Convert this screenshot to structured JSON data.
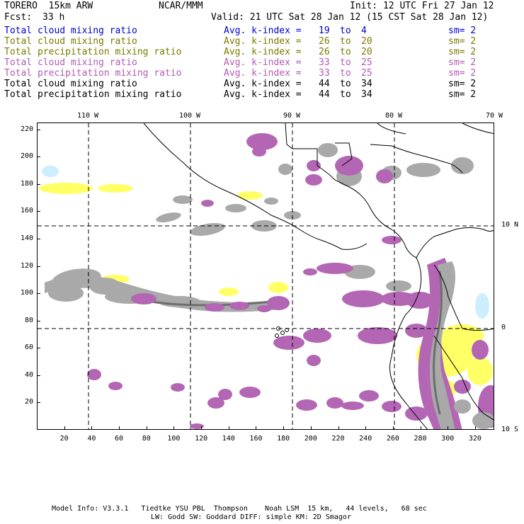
{
  "header": {
    "model": "TORERO  15km ARW",
    "org": "NCAR/MMM",
    "init": "Init: 12 UTC Fri 27 Jan 12",
    "fcst_label": "Fcst:",
    "fcst_value": "33 h",
    "valid": "Valid: 21 UTC Sat 28 Jan 12 (15 CST Sat 28 Jan 12)"
  },
  "legend": [
    {
      "field": "Total cloud mixing ratio",
      "avg": "Avg. k-index =",
      "hi": "19",
      "to": "to",
      "lo": "4",
      "sm": "sm= 2",
      "color": "#0000cc"
    },
    {
      "field": "Total cloud mixing ratio",
      "avg": "Avg. k-index =",
      "hi": "26",
      "to": "to",
      "lo": "20",
      "sm": "sm= 2",
      "color": "#7a7a00"
    },
    {
      "field": "Total precipitation mixing ratio",
      "avg": "Avg. k-index =",
      "hi": "26",
      "to": "to",
      "lo": "20",
      "sm": "sm= 2",
      "color": "#7a7a00"
    },
    {
      "field": "Total cloud mixing ratio",
      "avg": "Avg. k-index =",
      "hi": "33",
      "to": "to",
      "lo": "25",
      "sm": "sm= 2",
      "color": "#b35ab3"
    },
    {
      "field": "Total precipitation mixing ratio",
      "avg": "Avg. k-index =",
      "hi": "33",
      "to": "to",
      "lo": "25",
      "sm": "sm= 2",
      "color": "#b35ab3"
    },
    {
      "field": "Total cloud mixing ratio",
      "avg": "Avg. k-index =",
      "hi": "44",
      "to": "to",
      "lo": "34",
      "sm": "sm= 2",
      "color": "#000000"
    },
    {
      "field": "Total precipitation mixing ratio",
      "avg": "Avg. k-index =",
      "hi": "44",
      "to": "to",
      "lo": "34",
      "sm": "sm= 2",
      "color": "#000000"
    }
  ],
  "map": {
    "top_axis_labels": [
      "110 W",
      "100 W",
      "90 W",
      "80 W",
      "70 W"
    ],
    "right_axis_labels": [
      "10 N",
      "0",
      "10 S"
    ],
    "left_axis_labels": [
      "220",
      "200",
      "180",
      "160",
      "140",
      "120",
      "100",
      "80",
      "60",
      "40",
      "20"
    ],
    "bottom_axis_labels": [
      "20",
      "40",
      "60",
      "80",
      "100",
      "120",
      "140",
      "160",
      "180",
      "200",
      "220",
      "240",
      "260",
      "280",
      "300",
      "320"
    ],
    "x_grid_max": 334,
    "y_grid_max": 225,
    "colors": {
      "gray": "#a9a9a9",
      "dark_gray": "#6e6e6e",
      "purple": "#b366b3",
      "yellow": "#ffff66",
      "light_blue": "#cceeff"
    }
  },
  "footer": {
    "line1": "Model Info: V3.3.1   Tiedtke YSU PBL  Thompson    Noah LSM  15 km,   44 levels,   68 sec",
    "line2": "LW: Godd SW: Goddard DIFF: simple KM: 2D Smagor"
  }
}
